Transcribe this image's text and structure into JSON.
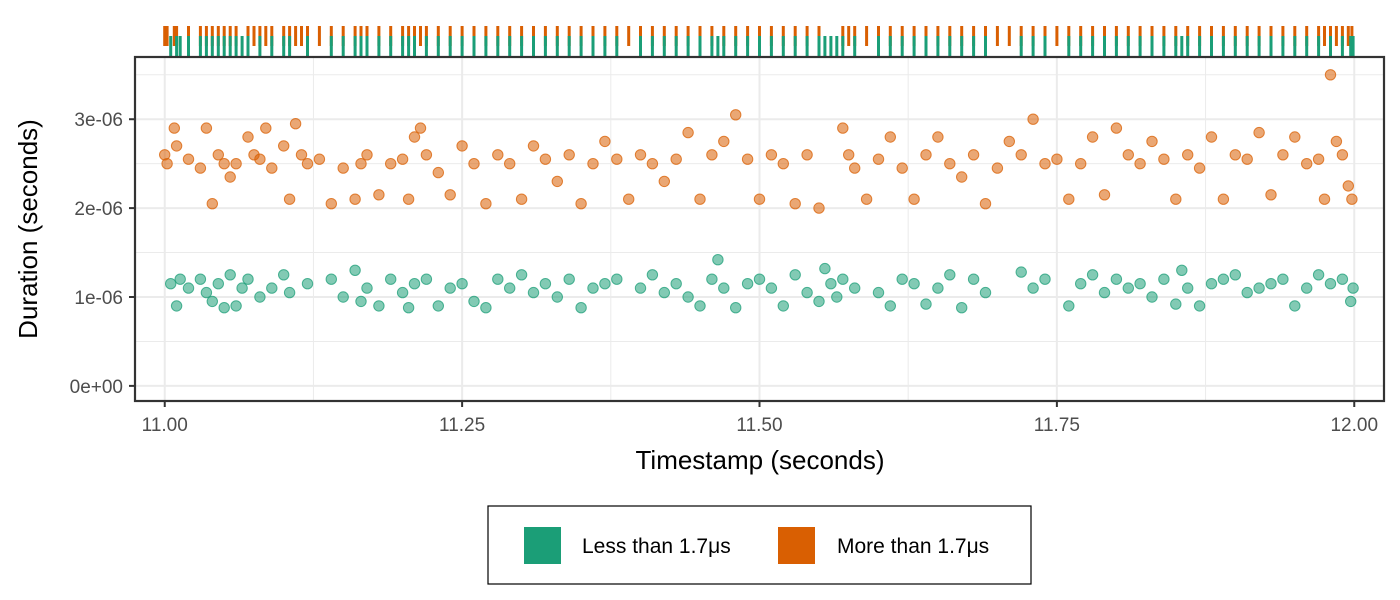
{
  "chart_data": {
    "type": "scatter",
    "title": "",
    "xlabel": "Timestamp (seconds)",
    "ylabel": "Duration (seconds)",
    "xlim": [
      10.975,
      12.025
    ],
    "ylim": [
      -1.7e-07,
      3.7e-06
    ],
    "x_ticks": [
      {
        "value": 11.0,
        "label": "11.00"
      },
      {
        "value": 11.25,
        "label": "11.25"
      },
      {
        "value": 11.5,
        "label": "11.50"
      },
      {
        "value": 11.75,
        "label": "11.75"
      },
      {
        "value": 12.0,
        "label": "12.00"
      }
    ],
    "y_ticks": [
      {
        "value": 0,
        "label": "0e+00"
      },
      {
        "value": 1e-06,
        "label": "1e-06"
      },
      {
        "value": 2e-06,
        "label": "2e-06"
      },
      {
        "value": 3e-06,
        "label": "3e-06"
      }
    ],
    "grid": true,
    "rug": "top",
    "legend": {
      "position": "bottom"
    },
    "series": [
      {
        "name": "Less than 1.7μs",
        "color": "#1b9e77",
        "points": [
          [
            11.005,
            1.15e-06
          ],
          [
            11.01,
            9e-07
          ],
          [
            11.013,
            1.2e-06
          ],
          [
            11.02,
            1.1e-06
          ],
          [
            11.03,
            1.2e-06
          ],
          [
            11.035,
            1.05e-06
          ],
          [
            11.04,
            9.5e-07
          ],
          [
            11.045,
            1.15e-06
          ],
          [
            11.05,
            8.8e-07
          ],
          [
            11.055,
            1.25e-06
          ],
          [
            11.06,
            9e-07
          ],
          [
            11.065,
            1.1e-06
          ],
          [
            11.07,
            1.2e-06
          ],
          [
            11.08,
            1e-06
          ],
          [
            11.09,
            1.1e-06
          ],
          [
            11.1,
            1.25e-06
          ],
          [
            11.105,
            1.05e-06
          ],
          [
            11.12,
            1.15e-06
          ],
          [
            11.14,
            1.2e-06
          ],
          [
            11.15,
            1e-06
          ],
          [
            11.16,
            1.3e-06
          ],
          [
            11.165,
            9.5e-07
          ],
          [
            11.17,
            1.1e-06
          ],
          [
            11.18,
            9e-07
          ],
          [
            11.19,
            1.2e-06
          ],
          [
            11.2,
            1.05e-06
          ],
          [
            11.205,
            8.8e-07
          ],
          [
            11.21,
            1.15e-06
          ],
          [
            11.22,
            1.2e-06
          ],
          [
            11.23,
            9e-07
          ],
          [
            11.24,
            1.1e-06
          ],
          [
            11.25,
            1.15e-06
          ],
          [
            11.26,
            9.5e-07
          ],
          [
            11.27,
            8.8e-07
          ],
          [
            11.28,
            1.2e-06
          ],
          [
            11.29,
            1.1e-06
          ],
          [
            11.3,
            1.25e-06
          ],
          [
            11.31,
            1.05e-06
          ],
          [
            11.32,
            1.15e-06
          ],
          [
            11.33,
            1e-06
          ],
          [
            11.34,
            1.2e-06
          ],
          [
            11.35,
            8.8e-07
          ],
          [
            11.36,
            1.1e-06
          ],
          [
            11.37,
            1.15e-06
          ],
          [
            11.38,
            1.2e-06
          ],
          [
            11.4,
            1.1e-06
          ],
          [
            11.41,
            1.25e-06
          ],
          [
            11.42,
            1.05e-06
          ],
          [
            11.43,
            1.15e-06
          ],
          [
            11.44,
            1e-06
          ],
          [
            11.45,
            9e-07
          ],
          [
            11.46,
            1.2e-06
          ],
          [
            11.465,
            1.42e-06
          ],
          [
            11.47,
            1.1e-06
          ],
          [
            11.48,
            8.8e-07
          ],
          [
            11.49,
            1.15e-06
          ],
          [
            11.5,
            1.2e-06
          ],
          [
            11.51,
            1.1e-06
          ],
          [
            11.52,
            9e-07
          ],
          [
            11.53,
            1.25e-06
          ],
          [
            11.54,
            1.05e-06
          ],
          [
            11.55,
            9.5e-07
          ],
          [
            11.555,
            1.32e-06
          ],
          [
            11.56,
            1.15e-06
          ],
          [
            11.565,
            1e-06
          ],
          [
            11.57,
            1.2e-06
          ],
          [
            11.58,
            1.1e-06
          ],
          [
            11.6,
            1.05e-06
          ],
          [
            11.61,
            9e-07
          ],
          [
            11.62,
            1.2e-06
          ],
          [
            11.63,
            1.15e-06
          ],
          [
            11.64,
            9.2e-07
          ],
          [
            11.65,
            1.1e-06
          ],
          [
            11.66,
            1.25e-06
          ],
          [
            11.67,
            8.8e-07
          ],
          [
            11.68,
            1.2e-06
          ],
          [
            11.69,
            1.05e-06
          ],
          [
            11.72,
            1.28e-06
          ],
          [
            11.73,
            1.1e-06
          ],
          [
            11.74,
            1.2e-06
          ],
          [
            11.76,
            9e-07
          ],
          [
            11.77,
            1.15e-06
          ],
          [
            11.78,
            1.25e-06
          ],
          [
            11.79,
            1.05e-06
          ],
          [
            11.8,
            1.2e-06
          ],
          [
            11.81,
            1.1e-06
          ],
          [
            11.82,
            1.15e-06
          ],
          [
            11.83,
            1e-06
          ],
          [
            11.84,
            1.2e-06
          ],
          [
            11.85,
            9.2e-07
          ],
          [
            11.855,
            1.3e-06
          ],
          [
            11.86,
            1.1e-06
          ],
          [
            11.87,
            9e-07
          ],
          [
            11.88,
            1.15e-06
          ],
          [
            11.89,
            1.2e-06
          ],
          [
            11.9,
            1.25e-06
          ],
          [
            11.91,
            1.05e-06
          ],
          [
            11.92,
            1.1e-06
          ],
          [
            11.93,
            1.15e-06
          ],
          [
            11.94,
            1.2e-06
          ],
          [
            11.95,
            9e-07
          ],
          [
            11.96,
            1.1e-06
          ],
          [
            11.97,
            1.25e-06
          ],
          [
            11.98,
            1.15e-06
          ],
          [
            11.99,
            1.2e-06
          ],
          [
            11.997,
            9.5e-07
          ],
          [
            11.999,
            1.1e-06
          ]
        ]
      },
      {
        "name": "More than 1.7μs",
        "color": "#d95f02",
        "points": [
          [
            11.0,
            2.6e-06
          ],
          [
            11.002,
            2.5e-06
          ],
          [
            11.008,
            2.9e-06
          ],
          [
            11.01,
            2.7e-06
          ],
          [
            11.02,
            2.55e-06
          ],
          [
            11.03,
            2.45e-06
          ],
          [
            11.035,
            2.9e-06
          ],
          [
            11.04,
            2.05e-06
          ],
          [
            11.045,
            2.6e-06
          ],
          [
            11.05,
            2.5e-06
          ],
          [
            11.055,
            2.35e-06
          ],
          [
            11.06,
            2.5e-06
          ],
          [
            11.07,
            2.8e-06
          ],
          [
            11.075,
            2.6e-06
          ],
          [
            11.08,
            2.55e-06
          ],
          [
            11.085,
            2.9e-06
          ],
          [
            11.09,
            2.45e-06
          ],
          [
            11.1,
            2.7e-06
          ],
          [
            11.105,
            2.1e-06
          ],
          [
            11.11,
            2.95e-06
          ],
          [
            11.115,
            2.6e-06
          ],
          [
            11.12,
            2.5e-06
          ],
          [
            11.13,
            2.55e-06
          ],
          [
            11.14,
            2.05e-06
          ],
          [
            11.15,
            2.45e-06
          ],
          [
            11.16,
            2.1e-06
          ],
          [
            11.165,
            2.5e-06
          ],
          [
            11.17,
            2.6e-06
          ],
          [
            11.18,
            2.15e-06
          ],
          [
            11.19,
            2.5e-06
          ],
          [
            11.2,
            2.55e-06
          ],
          [
            11.205,
            2.1e-06
          ],
          [
            11.21,
            2.8e-06
          ],
          [
            11.215,
            2.9e-06
          ],
          [
            11.22,
            2.6e-06
          ],
          [
            11.23,
            2.4e-06
          ],
          [
            11.24,
            2.15e-06
          ],
          [
            11.25,
            2.7e-06
          ],
          [
            11.26,
            2.5e-06
          ],
          [
            11.27,
            2.05e-06
          ],
          [
            11.28,
            2.6e-06
          ],
          [
            11.29,
            2.5e-06
          ],
          [
            11.3,
            2.1e-06
          ],
          [
            11.31,
            2.7e-06
          ],
          [
            11.32,
            2.55e-06
          ],
          [
            11.33,
            2.3e-06
          ],
          [
            11.34,
            2.6e-06
          ],
          [
            11.35,
            2.05e-06
          ],
          [
            11.36,
            2.5e-06
          ],
          [
            11.37,
            2.75e-06
          ],
          [
            11.38,
            2.55e-06
          ],
          [
            11.39,
            2.1e-06
          ],
          [
            11.4,
            2.6e-06
          ],
          [
            11.41,
            2.5e-06
          ],
          [
            11.42,
            2.3e-06
          ],
          [
            11.43,
            2.55e-06
          ],
          [
            11.44,
            2.85e-06
          ],
          [
            11.45,
            2.1e-06
          ],
          [
            11.46,
            2.6e-06
          ],
          [
            11.47,
            2.75e-06
          ],
          [
            11.48,
            3.05e-06
          ],
          [
            11.49,
            2.55e-06
          ],
          [
            11.5,
            2.1e-06
          ],
          [
            11.51,
            2.6e-06
          ],
          [
            11.52,
            2.5e-06
          ],
          [
            11.53,
            2.05e-06
          ],
          [
            11.54,
            2.6e-06
          ],
          [
            11.55,
            2e-06
          ],
          [
            11.57,
            2.9e-06
          ],
          [
            11.575,
            2.6e-06
          ],
          [
            11.58,
            2.45e-06
          ],
          [
            11.59,
            2.1e-06
          ],
          [
            11.6,
            2.55e-06
          ],
          [
            11.61,
            2.8e-06
          ],
          [
            11.62,
            2.45e-06
          ],
          [
            11.63,
            2.1e-06
          ],
          [
            11.64,
            2.6e-06
          ],
          [
            11.65,
            2.8e-06
          ],
          [
            11.66,
            2.5e-06
          ],
          [
            11.67,
            2.35e-06
          ],
          [
            11.68,
            2.6e-06
          ],
          [
            11.69,
            2.05e-06
          ],
          [
            11.7,
            2.45e-06
          ],
          [
            11.71,
            2.75e-06
          ],
          [
            11.72,
            2.6e-06
          ],
          [
            11.73,
            3e-06
          ],
          [
            11.74,
            2.5e-06
          ],
          [
            11.75,
            2.55e-06
          ],
          [
            11.76,
            2.1e-06
          ],
          [
            11.77,
            2.5e-06
          ],
          [
            11.78,
            2.8e-06
          ],
          [
            11.79,
            2.15e-06
          ],
          [
            11.8,
            2.9e-06
          ],
          [
            11.81,
            2.6e-06
          ],
          [
            11.82,
            2.5e-06
          ],
          [
            11.83,
            2.75e-06
          ],
          [
            11.84,
            2.55e-06
          ],
          [
            11.85,
            2.1e-06
          ],
          [
            11.86,
            2.6e-06
          ],
          [
            11.87,
            2.45e-06
          ],
          [
            11.88,
            2.8e-06
          ],
          [
            11.89,
            2.1e-06
          ],
          [
            11.9,
            2.6e-06
          ],
          [
            11.91,
            2.55e-06
          ],
          [
            11.92,
            2.85e-06
          ],
          [
            11.93,
            2.15e-06
          ],
          [
            11.94,
            2.6e-06
          ],
          [
            11.95,
            2.8e-06
          ],
          [
            11.96,
            2.5e-06
          ],
          [
            11.97,
            2.55e-06
          ],
          [
            11.975,
            2.1e-06
          ],
          [
            11.98,
            3.5e-06
          ],
          [
            11.985,
            2.75e-06
          ],
          [
            11.99,
            2.6e-06
          ],
          [
            11.995,
            2.25e-06
          ],
          [
            11.998,
            2.1e-06
          ]
        ]
      }
    ]
  }
}
